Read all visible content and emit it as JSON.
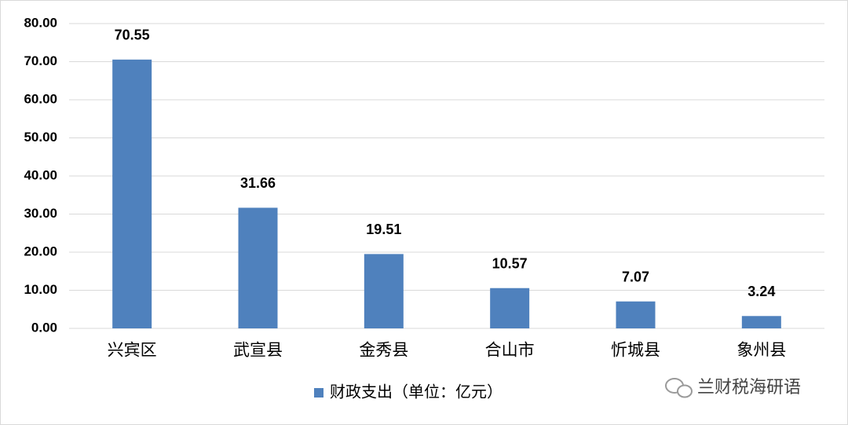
{
  "chart_data": {
    "type": "bar",
    "categories": [
      "兴宾区",
      "武宣县",
      "金秀县",
      "合山市",
      "忻城县",
      "象州县"
    ],
    "series": [
      {
        "name": "财政支出（单位：亿元）",
        "color": "#4f81bd",
        "values": [
          70.55,
          31.66,
          19.51,
          10.57,
          7.07,
          3.24
        ]
      }
    ],
    "ylim": [
      0,
      80
    ],
    "yticks": [
      {
        "value": 0,
        "label": "0.00"
      },
      {
        "value": 10,
        "label": "10.00"
      },
      {
        "value": 20,
        "label": "20.00"
      },
      {
        "value": 30,
        "label": "30.00"
      },
      {
        "value": 40,
        "label": "40.00"
      },
      {
        "value": 50,
        "label": "50.00"
      },
      {
        "value": 60,
        "label": "60.00"
      },
      {
        "value": 70,
        "label": "70.00"
      },
      {
        "value": 80,
        "label": "80.00"
      }
    ],
    "grid": true,
    "legend": "bottom",
    "watermark": "兰财税海研语"
  }
}
